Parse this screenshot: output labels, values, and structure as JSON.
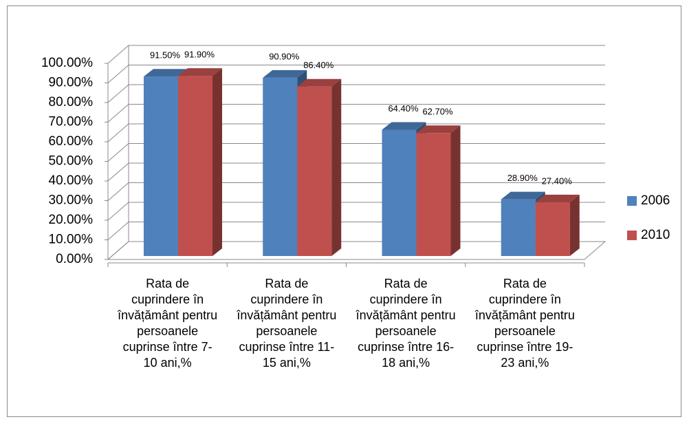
{
  "chart_data": {
    "type": "bar3d",
    "categories": [
      "Rata de cuprindere în învățământ pentru persoanele cuprinse între 7-10 ani,%",
      "Rata de cuprindere în învățământ pentru persoanele cuprinse între 11-15 ani,%",
      "Rata de cuprindere în învățământ pentru persoanele cuprinse între 16-18 ani,%",
      "Rata de cuprindere în învățământ pentru persoanele cuprinse între 19-23 ani,%"
    ],
    "series": [
      {
        "name": "2006",
        "color": "#4f81bd",
        "values": [
          91.5,
          90.9,
          64.4,
          28.9
        ],
        "value_labels": [
          "91.50%",
          "90.90%",
          "64.40%",
          "28.90%"
        ]
      },
      {
        "name": "2010",
        "color": "#c0504d",
        "values": [
          91.9,
          86.4,
          62.7,
          27.4
        ],
        "value_labels": [
          "91.90%",
          "86.40%",
          "62.70%",
          "27.40%"
        ]
      }
    ],
    "ylim": [
      0,
      100
    ],
    "yticks": [
      {
        "value": 0,
        "label": "0.00%"
      },
      {
        "value": 10,
        "label": "10.00%"
      },
      {
        "value": 20,
        "label": "20.00%"
      },
      {
        "value": 30,
        "label": "30.00%"
      },
      {
        "value": 40,
        "label": "40.00%"
      },
      {
        "value": 50,
        "label": "50.00%"
      },
      {
        "value": 60,
        "label": "60.00%"
      },
      {
        "value": 70,
        "label": "70.00%"
      },
      {
        "value": 80,
        "label": "80.00%"
      },
      {
        "value": 90,
        "label": "90.00%"
      },
      {
        "value": 100,
        "label": "100.00%"
      }
    ],
    "grid": true,
    "legend": "right"
  }
}
